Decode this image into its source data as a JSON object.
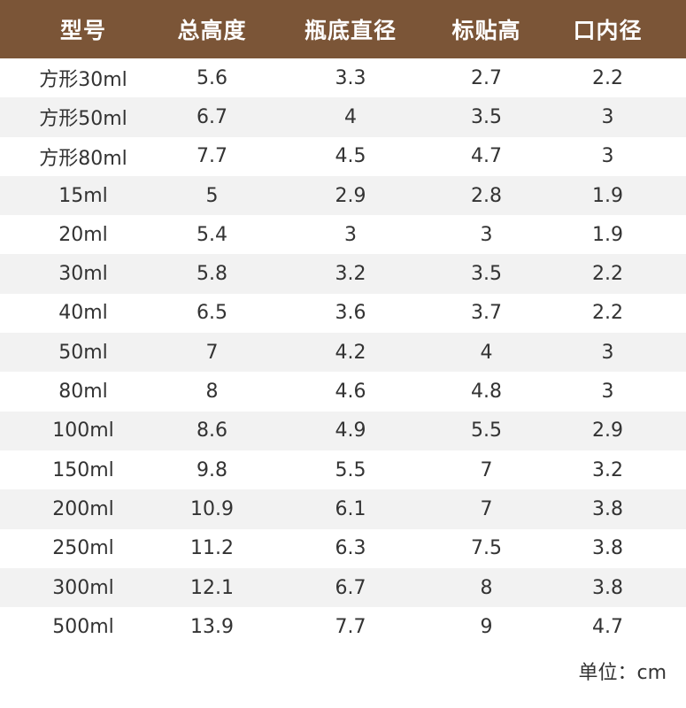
{
  "table": {
    "headers": [
      "型号",
      "总高度",
      "瓶底直径",
      "标贴高",
      "口内径"
    ],
    "rows": [
      [
        "方形30ml",
        "5.6",
        "3.3",
        "2.7",
        "2.2"
      ],
      [
        "方形50ml",
        "6.7",
        "4",
        "3.5",
        "3"
      ],
      [
        "方形80ml",
        "7.7",
        "4.5",
        "4.7",
        "3"
      ],
      [
        "15ml",
        "5",
        "2.9",
        "2.8",
        "1.9"
      ],
      [
        "20ml",
        "5.4",
        "3",
        "3",
        "1.9"
      ],
      [
        "30ml",
        "5.8",
        "3.2",
        "3.5",
        "2.2"
      ],
      [
        "40ml",
        "6.5",
        "3.6",
        "3.7",
        "2.2"
      ],
      [
        "50ml",
        "7",
        "4.2",
        "4",
        "3"
      ],
      [
        "80ml",
        "8",
        "4.6",
        "4.8",
        "3"
      ],
      [
        "100ml",
        "8.6",
        "4.9",
        "5.5",
        "2.9"
      ],
      [
        "150ml",
        "9.8",
        "5.5",
        "7",
        "3.2"
      ],
      [
        "200ml",
        "10.9",
        "6.1",
        "7",
        "3.8"
      ],
      [
        "250ml",
        "11.2",
        "6.3",
        "7.5",
        "3.8"
      ],
      [
        "300ml",
        "12.1",
        "6.7",
        "8",
        "3.8"
      ],
      [
        "500ml",
        "13.9",
        "7.7",
        "9",
        "4.7"
      ]
    ]
  },
  "unit_note": "单位：cm",
  "colors": {
    "header_bg": "#7b5537",
    "header_text": "#ffffff",
    "stripe": "#f2f2f2"
  }
}
